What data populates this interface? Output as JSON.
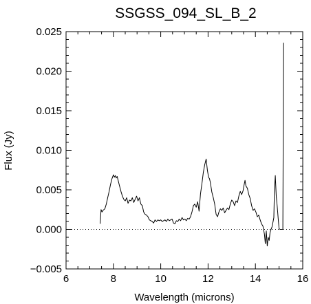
{
  "chart_data": {
    "type": "line",
    "title": "SSGSS_094_SL_B_2",
    "xlabel": "Wavelength (microns)",
    "ylabel": "Flux (Jy)",
    "xlim": [
      6,
      16
    ],
    "ylim": [
      -0.005,
      0.025
    ],
    "xticks": [
      6,
      8,
      10,
      12,
      14,
      16
    ],
    "xtick_labels": [
      "6",
      "8",
      "10",
      "12",
      "14",
      "16"
    ],
    "yticks": [
      -0.005,
      0.0,
      0.005,
      0.01,
      0.015,
      0.02,
      0.025
    ],
    "ytick_labels": [
      "−0.005",
      "0.000",
      "0.005",
      "0.010",
      "0.015",
      "0.020",
      "0.025"
    ],
    "grid": false,
    "zero_line": {
      "y": 0,
      "style": "dotted"
    },
    "series": [
      {
        "color": "#000000",
        "x": [
          7.44,
          7.48,
          7.52,
          7.56,
          7.6,
          7.64,
          7.7,
          7.76,
          7.82,
          7.88,
          7.94,
          8.0,
          8.04,
          8.08,
          8.12,
          8.16,
          8.2,
          8.26,
          8.32,
          8.38,
          8.44,
          8.5,
          8.56,
          8.62,
          8.68,
          8.74,
          8.8,
          8.86,
          8.92,
          8.98,
          9.04,
          9.1,
          9.16,
          9.22,
          9.28,
          9.34,
          9.4,
          9.46,
          9.52,
          9.58,
          9.64,
          9.7,
          9.76,
          9.82,
          9.88,
          9.94,
          10.0,
          10.06,
          10.12,
          10.18,
          10.24,
          10.3,
          10.36,
          10.42,
          10.48,
          10.54,
          10.6,
          10.66,
          10.72,
          10.78,
          10.84,
          10.9,
          10.96,
          11.02,
          11.08,
          11.14,
          11.2,
          11.26,
          11.32,
          11.38,
          11.44,
          11.5,
          11.56,
          11.62,
          11.68,
          11.74,
          11.8,
          11.86,
          11.92,
          11.97,
          12.02,
          12.06,
          12.1,
          12.16,
          12.22,
          12.28,
          12.34,
          12.4,
          12.46,
          12.52,
          12.58,
          12.64,
          12.7,
          12.76,
          12.82,
          12.88,
          12.94,
          13.0,
          13.06,
          13.12,
          13.18,
          13.24,
          13.3,
          13.36,
          13.42,
          13.48,
          13.52,
          13.56,
          13.6,
          13.66,
          13.72,
          13.78,
          13.84,
          13.9,
          13.96,
          14.02,
          14.08,
          14.14,
          14.2,
          14.26,
          14.32,
          14.38,
          14.42,
          14.46,
          14.5,
          14.54,
          14.58,
          14.62,
          14.66,
          14.7,
          14.74,
          14.78,
          14.8,
          14.84,
          14.88,
          14.92,
          14.96,
          15.0,
          15.04,
          15.08,
          15.12,
          15.16,
          15.19
        ],
        "y": [
          0.0007,
          0.0025,
          0.0022,
          0.0024,
          0.0025,
          0.0026,
          0.0032,
          0.004,
          0.0048,
          0.0057,
          0.0064,
          0.0069,
          0.0066,
          0.0068,
          0.0065,
          0.0067,
          0.0062,
          0.0055,
          0.0048,
          0.0042,
          0.0038,
          0.0036,
          0.004,
          0.0033,
          0.0037,
          0.0036,
          0.004,
          0.0034,
          0.0038,
          0.0042,
          0.0036,
          0.004,
          0.0032,
          0.003,
          0.0022,
          0.0019,
          0.0018,
          0.0016,
          0.0012,
          0.0011,
          0.001,
          0.0008,
          0.0012,
          0.001,
          0.0012,
          0.0011,
          0.0012,
          0.001,
          0.0011,
          0.0012,
          0.001,
          0.0013,
          0.0011,
          0.0012,
          0.0013,
          0.0008,
          0.0007,
          0.0011,
          0.001,
          0.0013,
          0.0011,
          0.0015,
          0.0012,
          0.0013,
          0.0011,
          0.0014,
          0.0013,
          0.0016,
          0.0022,
          0.003,
          0.0032,
          0.0028,
          0.0035,
          0.0023,
          0.0045,
          0.0058,
          0.0072,
          0.0082,
          0.0089,
          0.0075,
          0.0066,
          0.0064,
          0.0059,
          0.0047,
          0.004,
          0.0032,
          0.0019,
          0.0016,
          0.0022,
          0.0026,
          0.0024,
          0.0027,
          0.0021,
          0.0024,
          0.0027,
          0.0025,
          0.0032,
          0.0037,
          0.0035,
          0.003,
          0.0036,
          0.0034,
          0.0042,
          0.0048,
          0.0044,
          0.0049,
          0.0056,
          0.0062,
          0.0055,
          0.0052,
          0.0044,
          0.0039,
          0.003,
          0.0024,
          0.0026,
          0.0022,
          0.0016,
          0.0018,
          0.0012,
          0.0007,
          0.0004,
          -0.0006,
          -0.0018,
          -0.0002,
          -0.0021,
          -0.001,
          -0.0014,
          -0.0004,
          0.0,
          0.0003,
          0.0009,
          0.0015,
          0.0045,
          0.0068,
          0.0042,
          0.003,
          0.0015,
          0.0001,
          0.0,
          0.0,
          0.0,
          0.0,
          0.0236
        ]
      }
    ]
  }
}
